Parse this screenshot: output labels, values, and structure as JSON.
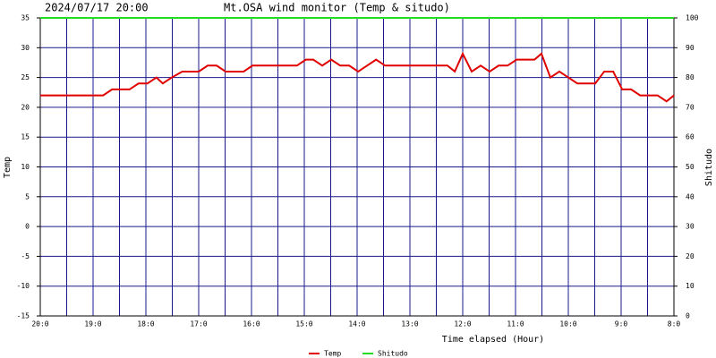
{
  "chart_data": {
    "type": "line",
    "date": "2024/07/17 20:00",
    "title": "Mt.OSA wind monitor (Temp & situdo)",
    "xlabel": "Time elapsed (Hour)",
    "ylabel": "Temp",
    "y2label": "Shitudo",
    "xlim": [
      0,
      12
    ],
    "xticks": [
      {
        "value": 0,
        "label": "20:0"
      },
      {
        "value": 1,
        "label": "19:0"
      },
      {
        "value": 2,
        "label": "18:0"
      },
      {
        "value": 3,
        "label": "17:0"
      },
      {
        "value": 4,
        "label": "16:0"
      },
      {
        "value": 5,
        "label": "15:0"
      },
      {
        "value": 6,
        "label": "14:0"
      },
      {
        "value": 7,
        "label": "13:0"
      },
      {
        "value": 8,
        "label": "12:0"
      },
      {
        "value": 9,
        "label": "11:0"
      },
      {
        "value": 10,
        "label": "10:0"
      },
      {
        "value": 11,
        "label": "9:0"
      },
      {
        "value": 12,
        "label": "8:0"
      }
    ],
    "ylim": [
      -15,
      35
    ],
    "yticks": [
      -15,
      -10,
      -5,
      0,
      5,
      10,
      15,
      20,
      25,
      30,
      35
    ],
    "y2lim": [
      0,
      100
    ],
    "y2ticks": [
      0,
      10,
      20,
      30,
      40,
      50,
      60,
      70,
      80,
      90,
      100
    ],
    "grid": true,
    "legend": "bottom",
    "series": [
      {
        "name": "Temp",
        "color": "#e00000",
        "x": [
          0,
          1.19,
          1.36,
          1.69,
          1.86,
          2.03,
          2.2,
          2.32,
          2.49,
          2.69,
          3.0,
          3.17,
          3.34,
          3.51,
          3.85,
          4.02,
          4.86,
          5.03,
          5.17,
          5.34,
          5.51,
          5.68,
          5.85,
          6.02,
          6.19,
          6.36,
          6.53,
          7.71,
          7.85,
          8.0,
          8.17,
          8.34,
          8.51,
          8.68,
          8.85,
          9.02,
          9.36,
          9.49,
          9.66,
          9.83,
          10.0,
          10.17,
          10.51,
          10.68,
          10.85,
          11.02,
          11.19,
          11.36,
          11.69,
          11.86,
          12.0
        ],
        "values": [
          22,
          22,
          23,
          23,
          24,
          24,
          25,
          24,
          25,
          26,
          26,
          27,
          27,
          26,
          26,
          27,
          27,
          28,
          28,
          27,
          28,
          27,
          27,
          26,
          27,
          28,
          27,
          27,
          26,
          29,
          26,
          27,
          26,
          27,
          27,
          28,
          28,
          29,
          25,
          26,
          25,
          24,
          24,
          26,
          26,
          23,
          23,
          22,
          22,
          21,
          22
        ]
      },
      {
        "name": "Shitudo",
        "color": "#22dd22",
        "axis": "y2",
        "x": [
          0,
          12
        ],
        "values": [
          100,
          100
        ]
      }
    ]
  }
}
